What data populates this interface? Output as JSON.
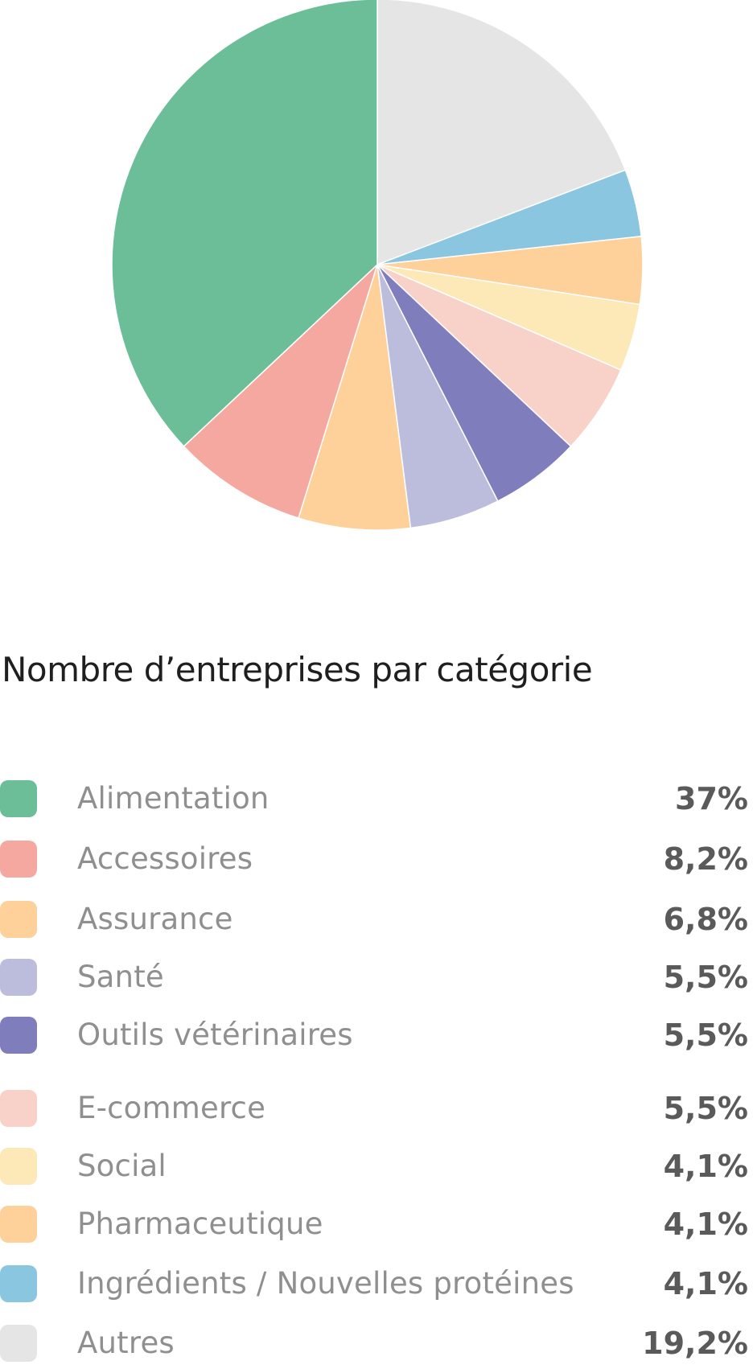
{
  "chart_data": {
    "type": "pie",
    "title": "Nombre d’entreprises par catégorie",
    "start_angle_deg": 0,
    "direction": "clockwise",
    "series": [
      {
        "name": "Autres",
        "value": 19.2,
        "display": "19,2%",
        "color": "#E5E5E5"
      },
      {
        "name": "Ingrédients / Nouvelles protéines",
        "value": 4.1,
        "display": "4,1%",
        "color": "#8BC6E0"
      },
      {
        "name": "Pharmaceutique",
        "value": 4.1,
        "display": "4,1%",
        "color": "#FDD199"
      },
      {
        "name": "Social",
        "value": 4.1,
        "display": "4,1%",
        "color": "#FDE8B8"
      },
      {
        "name": "E-commerce",
        "value": 5.5,
        "display": "5,5%",
        "color": "#F8D2C8"
      },
      {
        "name": "Outils vétérinaires",
        "value": 5.5,
        "display": "5,5%",
        "color": "#7F7DBB"
      },
      {
        "name": "Santé",
        "value": 5.5,
        "display": "5,5%",
        "color": "#BCBCDD"
      },
      {
        "name": "Assurance",
        "value": 6.8,
        "display": "6,8%",
        "color": "#FDD199"
      },
      {
        "name": "Accessoires",
        "value": 8.2,
        "display": "8,2%",
        "color": "#F5A8A0"
      },
      {
        "name": "Alimentation",
        "value": 37,
        "display": "37%",
        "color": "#6BBE98"
      }
    ],
    "legend_order": [
      "Alimentation",
      "Accessoires",
      "Assurance",
      "Santé",
      "Outils vétérinaires",
      "E-commerce",
      "Social",
      "Pharmaceutique",
      "Ingrédients / Nouvelles protéines",
      "Autres"
    ],
    "legend_placement": "bottom"
  }
}
